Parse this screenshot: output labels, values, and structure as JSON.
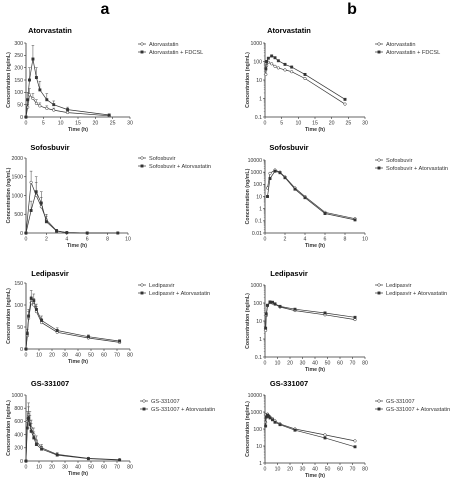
{
  "panel_labels": [
    "a",
    "b"
  ],
  "chart_data": [
    {
      "type": "line",
      "panel": "a",
      "title": "Atorvastatin",
      "xlabel": "Time (h)",
      "ylabel": "Concentration (ng/mL)",
      "xlim": [
        0,
        30
      ],
      "ylim": [
        0,
        300
      ],
      "yscale": "linear",
      "xticks": [
        0,
        5,
        10,
        15,
        20,
        25,
        30
      ],
      "yticks": [
        0,
        50,
        100,
        150,
        200,
        250,
        300
      ],
      "legend_position": "right",
      "series": [
        {
          "name": "Atorvastatin",
          "marker": "circle",
          "x": [
            0,
            0.5,
            1,
            2,
            3,
            4,
            6,
            8,
            12,
            24
          ],
          "y": [
            0,
            40,
            90,
            75,
            55,
            45,
            35,
            28,
            18,
            5
          ],
          "err": [
            0,
            10,
            25,
            20,
            15,
            12,
            10,
            8,
            5,
            2
          ]
        },
        {
          "name": "Atorvastatin + FDCSL",
          "marker": "square",
          "x": [
            0,
            0.5,
            1,
            2,
            3,
            4,
            6,
            8,
            12,
            24
          ],
          "y": [
            0,
            70,
            150,
            235,
            160,
            110,
            70,
            50,
            30,
            8
          ],
          "err": [
            0,
            30,
            50,
            55,
            40,
            35,
            25,
            15,
            10,
            3
          ]
        }
      ]
    },
    {
      "type": "line",
      "panel": "b",
      "title": "Atorvastatin",
      "xlabel": "Time (h)",
      "ylabel": "Concentration (ng/mL)",
      "xlim": [
        0,
        30
      ],
      "ylim": [
        0.1,
        1000
      ],
      "yscale": "log",
      "xticks": [
        0,
        5,
        10,
        15,
        20,
        25,
        30
      ],
      "yticks": [
        0.1,
        1,
        10,
        100,
        1000
      ],
      "legend_position": "right",
      "series": [
        {
          "name": "Atorvastatin",
          "marker": "circle",
          "x": [
            0.25,
            0.5,
            1,
            2,
            3,
            4,
            6,
            8,
            12,
            24
          ],
          "y": [
            20,
            60,
            90,
            75,
            55,
            45,
            35,
            28,
            12,
            0.5
          ]
        },
        {
          "name": "Atorvastatin + FDCSL",
          "marker": "square",
          "x": [
            0.25,
            0.5,
            1,
            2,
            3,
            4,
            6,
            8,
            12,
            24
          ],
          "y": [
            40,
            100,
            150,
            200,
            160,
            110,
            70,
            50,
            20,
            0.9
          ]
        }
      ]
    },
    {
      "type": "line",
      "panel": "a",
      "title": "Sofosbuvir",
      "xlabel": "Time (h)",
      "ylabel": "Concentration (ng/mL)",
      "xlim": [
        0,
        10
      ],
      "ylim": [
        0,
        2000
      ],
      "yscale": "linear",
      "xticks": [
        0,
        2,
        4,
        6,
        8,
        10
      ],
      "yticks": [
        0,
        500,
        1000,
        1500,
        2000
      ],
      "legend_position": "right",
      "series": [
        {
          "name": "Sofosbuvir",
          "marker": "circle",
          "x": [
            0,
            0.5,
            1,
            1.5,
            2,
            3,
            4,
            6,
            9
          ],
          "y": [
            0,
            1350,
            1000,
            700,
            350,
            60,
            10,
            0,
            0
          ],
          "err": [
            0,
            300,
            350,
            250,
            150,
            40,
            5,
            0,
            0
          ]
        },
        {
          "name": "Sofosbuvir + Atorvastatin",
          "marker": "square",
          "x": [
            0,
            0.5,
            1,
            1.5,
            2,
            3,
            4,
            6,
            9
          ],
          "y": [
            0,
            600,
            1100,
            800,
            300,
            50,
            10,
            0,
            0
          ],
          "err": [
            0,
            250,
            400,
            300,
            150,
            30,
            5,
            0,
            0
          ]
        }
      ]
    },
    {
      "type": "line",
      "panel": "b",
      "title": "Sofosbuvir",
      "xlabel": "Time (h)",
      "ylabel": "Concentration (ng/mL)",
      "xlim": [
        0,
        10
      ],
      "ylim": [
        0.01,
        10000
      ],
      "yscale": "log",
      "xticks": [
        0,
        2,
        4,
        6,
        8,
        10
      ],
      "yticks": [
        0.01,
        0.1,
        1,
        10,
        100,
        1000,
        10000
      ],
      "legend_position": "right",
      "series": [
        {
          "name": "Sofosbuvir",
          "marker": "circle",
          "x": [
            0.25,
            0.5,
            1,
            1.5,
            2,
            3,
            4,
            6,
            9
          ],
          "y": [
            50,
            800,
            1500,
            1000,
            400,
            50,
            10,
            0.5,
            0.15
          ]
        },
        {
          "name": "Sofosbuvir + Atorvastatin",
          "marker": "square",
          "x": [
            0.25,
            0.5,
            1,
            1.5,
            2,
            3,
            4,
            6,
            9
          ],
          "y": [
            10,
            300,
            1200,
            900,
            350,
            40,
            8,
            0.4,
            0.12
          ]
        }
      ]
    },
    {
      "type": "line",
      "panel": "a",
      "title": "Ledipasvir",
      "xlabel": "Time (h)",
      "ylabel": "Concentration (ng/mL)",
      "xlim": [
        0,
        80
      ],
      "ylim": [
        0,
        150
      ],
      "yscale": "linear",
      "xticks": [
        0,
        10,
        20,
        30,
        40,
        50,
        60,
        70,
        80
      ],
      "yticks": [
        0,
        50,
        100,
        150
      ],
      "legend_position": "right",
      "series": [
        {
          "name": "Ledipasvir",
          "marker": "circle",
          "x": [
            0,
            1,
            2,
            4,
            6,
            8,
            12,
            24,
            48,
            72
          ],
          "y": [
            0,
            30,
            70,
            105,
            100,
            85,
            60,
            38,
            25,
            15
          ],
          "err": [
            0,
            10,
            15,
            15,
            15,
            12,
            10,
            6,
            4,
            3
          ]
        },
        {
          "name": "Ledipasvir + Atorvastatin",
          "marker": "square",
          "x": [
            0,
            1,
            2,
            4,
            6,
            8,
            12,
            24,
            48,
            72
          ],
          "y": [
            0,
            35,
            75,
            115,
            110,
            90,
            65,
            42,
            28,
            18
          ],
          "err": [
            0,
            10,
            15,
            18,
            15,
            12,
            10,
            6,
            4,
            3
          ]
        }
      ]
    },
    {
      "type": "line",
      "panel": "b",
      "title": "Ledipasvir",
      "xlabel": "Time (h)",
      "ylabel": "Concentration (ng/mL)",
      "xlim": [
        0,
        80
      ],
      "ylim": [
        0.1,
        1000
      ],
      "yscale": "log",
      "xticks": [
        0,
        10,
        20,
        30,
        40,
        50,
        60,
        70,
        80
      ],
      "yticks": [
        0.1,
        1,
        10,
        100,
        1000
      ],
      "legend_position": "right",
      "series": [
        {
          "name": "Ledipasvir",
          "marker": "circle",
          "x": [
            0.5,
            1,
            2,
            4,
            6,
            8,
            12,
            24,
            48,
            72
          ],
          "y": [
            3,
            20,
            70,
            105,
            100,
            85,
            60,
            38,
            22,
            12
          ]
        },
        {
          "name": "Ledipasvir + Atorvastatin",
          "marker": "square",
          "x": [
            0.5,
            1,
            2,
            4,
            6,
            8,
            12,
            24,
            48,
            72
          ],
          "y": [
            4,
            25,
            75,
            115,
            110,
            90,
            65,
            45,
            28,
            16
          ]
        }
      ]
    },
    {
      "type": "line",
      "panel": "a",
      "title": "GS-331007",
      "xlabel": "Time (h)",
      "ylabel": "Concentration (ng/mL)",
      "xlim": [
        0,
        80
      ],
      "ylim": [
        0,
        1000
      ],
      "yscale": "linear",
      "xticks": [
        0,
        10,
        20,
        30,
        40,
        50,
        60,
        70,
        80
      ],
      "yticks": [
        0,
        200,
        400,
        600,
        800,
        1000
      ],
      "legend_position": "right",
      "series": [
        {
          "name": "GS-331007",
          "marker": "circle",
          "x": [
            0,
            1,
            2,
            3,
            4,
            6,
            8,
            12,
            24,
            48,
            72
          ],
          "y": [
            0,
            600,
            700,
            600,
            500,
            400,
            300,
            200,
            100,
            40,
            20
          ],
          "err": [
            0,
            150,
            180,
            150,
            120,
            100,
            80,
            50,
            25,
            10,
            5
          ]
        },
        {
          "name": "GS-331007 + Atorvastatin",
          "marker": "square",
          "x": [
            0,
            1,
            2,
            3,
            4,
            6,
            8,
            12,
            24,
            48,
            72
          ],
          "y": [
            0,
            500,
            650,
            550,
            450,
            350,
            250,
            180,
            90,
            35,
            15
          ],
          "err": [
            0,
            150,
            170,
            140,
            120,
            90,
            70,
            45,
            20,
            8,
            4
          ]
        }
      ]
    },
    {
      "type": "line",
      "panel": "b",
      "title": "GS-331007",
      "xlabel": "Time (h)",
      "ylabel": "Concentration (ng/mL)",
      "xlim": [
        0,
        80
      ],
      "ylim": [
        1,
        10000
      ],
      "yscale": "log",
      "xticks": [
        0,
        10,
        20,
        30,
        40,
        50,
        60,
        70,
        80
      ],
      "yticks": [
        1,
        10,
        100,
        1000,
        10000
      ],
      "legend_position": "right",
      "series": [
        {
          "name": "GS-331007",
          "marker": "circle",
          "x": [
            0.5,
            1,
            2,
            3,
            4,
            6,
            8,
            12,
            24,
            48,
            72
          ],
          "y": [
            250,
            700,
            750,
            600,
            500,
            400,
            300,
            200,
            100,
            45,
            20
          ]
        },
        {
          "name": "GS-331007 + Atorvastatin",
          "marker": "square",
          "x": [
            0.5,
            1,
            2,
            3,
            4,
            6,
            8,
            12,
            24,
            48,
            72
          ],
          "y": [
            150,
            500,
            650,
            550,
            450,
            350,
            250,
            180,
            85,
            30,
            9
          ]
        }
      ]
    }
  ]
}
